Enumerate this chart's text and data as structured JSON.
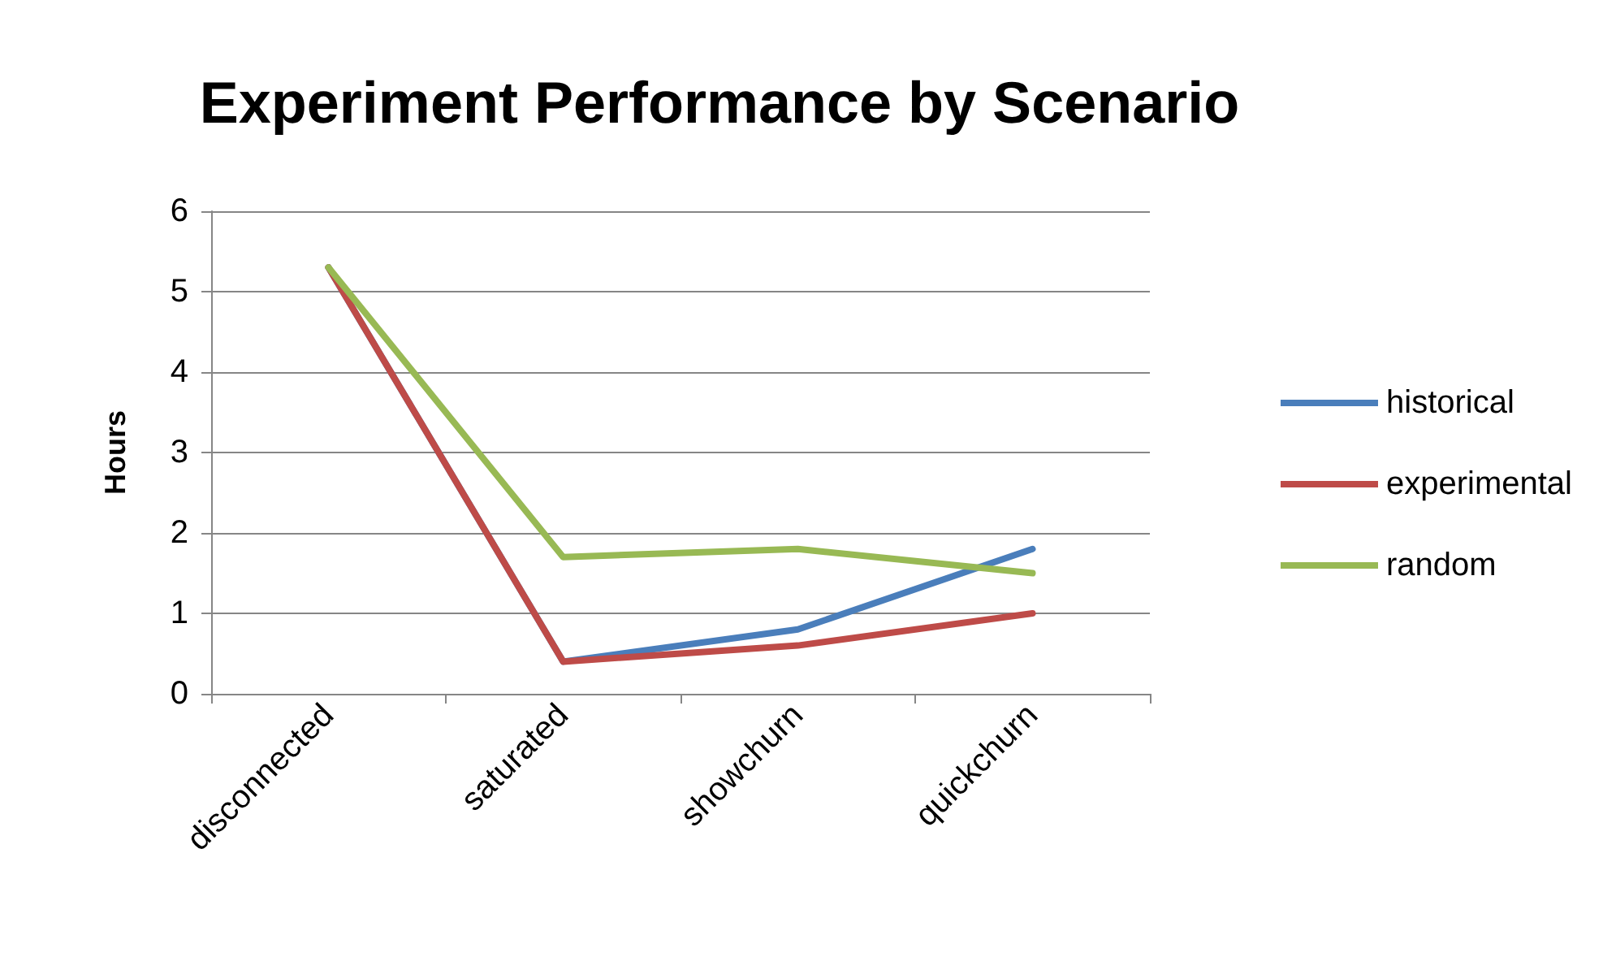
{
  "chart_data": {
    "type": "line",
    "title": "Experiment Performance by Scenario",
    "ylabel": "Hours",
    "categories": [
      "disconnected",
      "saturated",
      "showchurn",
      "quickchurn"
    ],
    "series": [
      {
        "name": "historical",
        "color": "#4a7ebb",
        "values": [
          5.3,
          0.4,
          0.8,
          1.8
        ]
      },
      {
        "name": "experimental",
        "color": "#be4b48",
        "values": [
          5.3,
          0.4,
          0.6,
          1.0
        ]
      },
      {
        "name": "random",
        "color": "#98b954",
        "values": [
          5.3,
          1.7,
          1.8,
          1.5
        ]
      }
    ],
    "ylim": [
      0,
      6
    ],
    "yticks": [
      0,
      1,
      2,
      3,
      4,
      5,
      6
    ],
    "grid": "y",
    "legend": "right",
    "marker": "none",
    "line_style": "solid"
  }
}
